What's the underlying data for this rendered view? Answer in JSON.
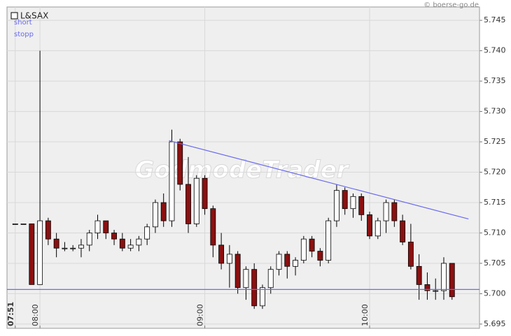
{
  "chart_data": {
    "type": "candlestick",
    "source": "© boerse-go.de",
    "watermark": "GodmodeTrader",
    "up_color": "#ffffff",
    "down_color": "#8b1010",
    "edge_color": "#000000",
    "grid": true,
    "xlim": [
      "07:48",
      "10:40"
    ],
    "xticks": [
      "07:51",
      "08:00",
      "09:00",
      "10:00"
    ],
    "ylim": [
      5.6943,
      5.7472
    ],
    "yticks": [
      5.695,
      {
        "value": 5.7,
        "label": "5.700"
      },
      5.705,
      {
        "value": 5.71,
        "label": "5.710"
      },
      5.715,
      {
        "value": 5.72,
        "label": "5.720"
      },
      5.725,
      {
        "value": 5.73,
        "label": "5.730"
      },
      5.735,
      {
        "value": 5.74,
        "label": "5.740"
      },
      5.745
    ],
    "series": [
      {
        "name": "L&SAX",
        "x": [
          "07:51",
          "07:54",
          "07:57",
          "08:00",
          "08:03",
          "08:06",
          "08:09",
          "08:12",
          "08:15",
          "08:18",
          "08:21",
          "08:24",
          "08:27",
          "08:30",
          "08:33",
          "08:36",
          "08:39",
          "08:42",
          "08:45",
          "08:48",
          "08:51",
          "08:54",
          "08:57",
          "09:00",
          "09:03",
          "09:06",
          "09:09",
          "09:12",
          "09:15",
          "09:18",
          "09:21",
          "09:24",
          "09:27",
          "09:30",
          "09:33",
          "09:36",
          "09:39",
          "09:42",
          "09:45",
          "09:48",
          "09:51",
          "09:54",
          "09:57",
          "10:00",
          "10:03",
          "10:06",
          "10:09",
          "10:12",
          "10:15",
          "10:18",
          "10:21",
          "10:24",
          "10:27",
          "10:30"
        ],
        "open": [
          5.7115,
          5.7115,
          5.7115,
          5.7015,
          5.712,
          5.709,
          5.7075,
          5.7075,
          5.7075,
          5.708,
          5.71,
          5.712,
          5.71,
          5.709,
          5.7075,
          5.708,
          5.709,
          5.711,
          5.715,
          5.712,
          5.725,
          5.718,
          5.7115,
          5.719,
          5.714,
          5.708,
          5.705,
          5.7065,
          5.701,
          5.704,
          5.698,
          5.701,
          5.704,
          5.7065,
          5.7045,
          5.7055,
          5.709,
          5.707,
          5.7055,
          5.712,
          5.717,
          5.714,
          5.716,
          5.713,
          5.7095,
          5.712,
          5.715,
          5.712,
          5.7085,
          5.7045,
          5.7015,
          5.7005,
          5.7005,
          5.705
        ],
        "high": [
          5.7115,
          5.7115,
          5.7115,
          5.74,
          5.7125,
          5.71,
          5.7085,
          5.708,
          5.709,
          5.7105,
          5.713,
          5.712,
          5.7105,
          5.71,
          5.709,
          5.7095,
          5.7115,
          5.7155,
          5.7165,
          5.727,
          5.7255,
          5.7225,
          5.7195,
          5.7195,
          5.7145,
          5.71,
          5.708,
          5.707,
          5.7045,
          5.705,
          5.7015,
          5.7045,
          5.707,
          5.707,
          5.706,
          5.7095,
          5.7095,
          5.7075,
          5.7125,
          5.718,
          5.7175,
          5.7165,
          5.7165,
          5.7135,
          5.7125,
          5.7155,
          5.7155,
          5.713,
          5.7115,
          5.7065,
          5.7035,
          5.7025,
          5.706,
          5.705
        ],
        "low": [
          5.7115,
          5.7115,
          5.7015,
          5.7015,
          5.708,
          5.706,
          5.707,
          5.707,
          5.706,
          5.707,
          5.709,
          5.709,
          5.708,
          5.707,
          5.707,
          5.707,
          5.708,
          5.71,
          5.711,
          5.711,
          5.717,
          5.71,
          5.711,
          5.713,
          5.706,
          5.704,
          5.701,
          5.7,
          5.699,
          5.6975,
          5.6975,
          5.7,
          5.703,
          5.7025,
          5.703,
          5.705,
          5.706,
          5.7045,
          5.705,
          5.711,
          5.713,
          5.7125,
          5.712,
          5.709,
          5.709,
          5.71,
          5.711,
          5.708,
          5.704,
          5.699,
          5.699,
          5.699,
          5.699,
          5.699
        ],
        "close": [
          5.7115,
          5.7115,
          5.7015,
          5.712,
          5.709,
          5.7075,
          5.7075,
          5.7075,
          5.708,
          5.71,
          5.712,
          5.71,
          5.709,
          5.7075,
          5.708,
          5.709,
          5.711,
          5.715,
          5.712,
          5.725,
          5.718,
          5.7115,
          5.719,
          5.714,
          5.708,
          5.705,
          5.7065,
          5.701,
          5.704,
          5.698,
          5.701,
          5.704,
          5.7065,
          5.7045,
          5.7055,
          5.709,
          5.707,
          5.7055,
          5.712,
          5.717,
          5.714,
          5.716,
          5.713,
          5.7095,
          5.712,
          5.715,
          5.712,
          5.7085,
          5.7045,
          5.7015,
          5.7005,
          5.7005,
          5.705,
          5.6995
        ]
      }
    ],
    "lines": [
      {
        "name": "short",
        "color": "#6a6af0",
        "x": [
          "08:47",
          "10:36"
        ],
        "values": [
          5.7252,
          5.7123
        ]
      },
      {
        "name": "stopp",
        "color": "#6a6af0",
        "value": 5.7007
      }
    ]
  }
}
